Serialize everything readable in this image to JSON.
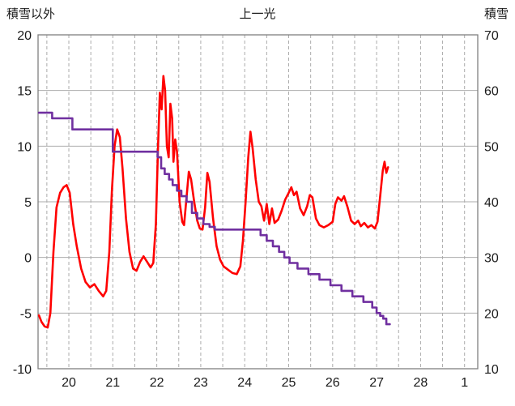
{
  "header": {
    "left_axis_title": "積雪以外",
    "chart_title": "上一光",
    "right_axis_title": "積雪"
  },
  "chart_data": {
    "type": "line",
    "title": "上一光",
    "legend": "none",
    "left_axis": {
      "title": "積雪以外",
      "range": [
        -10,
        20
      ],
      "ticks": [
        -10,
        -5,
        0,
        5,
        10,
        15,
        20
      ]
    },
    "right_axis": {
      "title": "積雪",
      "range": [
        10,
        70
      ],
      "ticks": [
        10,
        20,
        30,
        40,
        50,
        60,
        70
      ]
    },
    "x_axis": {
      "range": [
        19.3,
        29.3
      ],
      "tick_positions": [
        20,
        21,
        22,
        23,
        24,
        25,
        26,
        27,
        28,
        29
      ],
      "tick_labels": [
        "20",
        "21",
        "22",
        "23",
        "24",
        "25",
        "26",
        "27",
        "28",
        "1"
      ],
      "gridline_start": 19.5,
      "gridline_end": 29.0,
      "gridline_interval": 0.5
    },
    "style": {
      "grid_color": "#ABABAB",
      "grid_dash": "4 3",
      "border_color": "#7F7F7F",
      "tick_label_color": "#1a1a1a",
      "tick_font_size": 16
    },
    "series": [
      {
        "name": "積雪以外",
        "axis": "left",
        "color": "#FF0000",
        "width": 2.6,
        "interpolation": "linear",
        "points": [
          [
            19.32,
            -5.2
          ],
          [
            19.38,
            -5.8
          ],
          [
            19.45,
            -6.2
          ],
          [
            19.52,
            -6.3
          ],
          [
            19.58,
            -5.0
          ],
          [
            19.65,
            0.5
          ],
          [
            19.72,
            4.5
          ],
          [
            19.8,
            5.8
          ],
          [
            19.88,
            6.3
          ],
          [
            19.95,
            6.5
          ],
          [
            20.02,
            5.8
          ],
          [
            20.1,
            3.0
          ],
          [
            20.18,
            1.0
          ],
          [
            20.28,
            -1.0
          ],
          [
            20.38,
            -2.2
          ],
          [
            20.48,
            -2.7
          ],
          [
            20.58,
            -2.4
          ],
          [
            20.68,
            -3.0
          ],
          [
            20.78,
            -3.5
          ],
          [
            20.85,
            -3.0
          ],
          [
            20.92,
            0.5
          ],
          [
            20.98,
            6.0
          ],
          [
            21.04,
            10.0
          ],
          [
            21.1,
            11.5
          ],
          [
            21.16,
            10.8
          ],
          [
            21.22,
            8.0
          ],
          [
            21.3,
            3.5
          ],
          [
            21.38,
            0.5
          ],
          [
            21.46,
            -1.0
          ],
          [
            21.54,
            -1.2
          ],
          [
            21.62,
            -0.4
          ],
          [
            21.7,
            0.1
          ],
          [
            21.78,
            -0.4
          ],
          [
            21.86,
            -0.9
          ],
          [
            21.92,
            -0.5
          ],
          [
            21.98,
            3.0
          ],
          [
            22.03,
            10.0
          ],
          [
            22.07,
            14.8
          ],
          [
            22.11,
            13.3
          ],
          [
            22.15,
            16.3
          ],
          [
            22.19,
            15.0
          ],
          [
            22.23,
            10.0
          ],
          [
            22.27,
            9.0
          ],
          [
            22.31,
            13.8
          ],
          [
            22.35,
            12.5
          ],
          [
            22.38,
            8.6
          ],
          [
            22.42,
            10.6
          ],
          [
            22.46,
            9.5
          ],
          [
            22.52,
            5.0
          ],
          [
            22.58,
            3.2
          ],
          [
            22.62,
            2.9
          ],
          [
            22.68,
            5.5
          ],
          [
            22.73,
            7.7
          ],
          [
            22.78,
            7.0
          ],
          [
            22.85,
            5.0
          ],
          [
            22.92,
            3.3
          ],
          [
            22.98,
            2.6
          ],
          [
            23.04,
            2.5
          ],
          [
            23.1,
            4.5
          ],
          [
            23.15,
            7.6
          ],
          [
            23.2,
            6.8
          ],
          [
            23.28,
            3.5
          ],
          [
            23.36,
            1.0
          ],
          [
            23.44,
            -0.2
          ],
          [
            23.52,
            -0.8
          ],
          [
            23.62,
            -1.1
          ],
          [
            23.72,
            -1.4
          ],
          [
            23.82,
            -1.5
          ],
          [
            23.9,
            -0.8
          ],
          [
            23.96,
            1.5
          ],
          [
            24.02,
            5.0
          ],
          [
            24.08,
            9.0
          ],
          [
            24.13,
            11.3
          ],
          [
            24.18,
            9.8
          ],
          [
            24.25,
            7.0
          ],
          [
            24.32,
            5.0
          ],
          [
            24.38,
            4.6
          ],
          [
            24.44,
            3.3
          ],
          [
            24.5,
            4.8
          ],
          [
            24.56,
            3.0
          ],
          [
            24.62,
            4.4
          ],
          [
            24.68,
            3.1
          ],
          [
            24.76,
            3.4
          ],
          [
            24.84,
            4.2
          ],
          [
            24.92,
            5.2
          ],
          [
            25.0,
            5.8
          ],
          [
            25.06,
            6.3
          ],
          [
            25.12,
            5.6
          ],
          [
            25.18,
            5.9
          ],
          [
            25.26,
            4.4
          ],
          [
            25.34,
            3.8
          ],
          [
            25.42,
            4.6
          ],
          [
            25.48,
            5.6
          ],
          [
            25.54,
            5.4
          ],
          [
            25.62,
            3.5
          ],
          [
            25.7,
            2.9
          ],
          [
            25.8,
            2.7
          ],
          [
            25.9,
            2.9
          ],
          [
            26.0,
            3.2
          ],
          [
            26.06,
            4.8
          ],
          [
            26.12,
            5.4
          ],
          [
            26.2,
            5.1
          ],
          [
            26.26,
            5.5
          ],
          [
            26.34,
            4.5
          ],
          [
            26.42,
            3.3
          ],
          [
            26.5,
            3.0
          ],
          [
            26.58,
            3.3
          ],
          [
            26.64,
            2.8
          ],
          [
            26.72,
            3.1
          ],
          [
            26.8,
            2.7
          ],
          [
            26.88,
            2.9
          ],
          [
            26.96,
            2.6
          ],
          [
            27.02,
            3.2
          ],
          [
            27.08,
            5.5
          ],
          [
            27.14,
            7.8
          ],
          [
            27.18,
            8.6
          ],
          [
            27.22,
            7.6
          ],
          [
            27.26,
            8.1
          ]
        ]
      },
      {
        "name": "積雪",
        "axis": "right",
        "color": "#7030A0",
        "width": 2.6,
        "interpolation": "step",
        "points": [
          [
            19.32,
            56
          ],
          [
            19.62,
            55
          ],
          [
            20.08,
            53
          ],
          [
            21.0,
            49
          ],
          [
            22.02,
            48
          ],
          [
            22.1,
            46
          ],
          [
            22.18,
            45
          ],
          [
            22.28,
            44
          ],
          [
            22.36,
            43
          ],
          [
            22.46,
            42
          ],
          [
            22.56,
            41
          ],
          [
            22.68,
            40
          ],
          [
            22.8,
            38
          ],
          [
            22.92,
            37
          ],
          [
            23.06,
            36
          ],
          [
            23.2,
            35.5
          ],
          [
            23.32,
            35
          ],
          [
            24.36,
            34
          ],
          [
            24.5,
            33
          ],
          [
            24.64,
            32
          ],
          [
            24.78,
            31
          ],
          [
            24.9,
            30
          ],
          [
            25.02,
            29
          ],
          [
            25.2,
            28
          ],
          [
            25.45,
            27
          ],
          [
            25.7,
            26
          ],
          [
            25.95,
            25
          ],
          [
            26.2,
            24
          ],
          [
            26.45,
            23
          ],
          [
            26.7,
            22
          ],
          [
            26.9,
            21
          ],
          [
            27.0,
            20
          ],
          [
            27.08,
            19.5
          ],
          [
            27.15,
            19
          ],
          [
            27.22,
            18
          ],
          [
            27.3,
            18
          ]
        ]
      }
    ]
  }
}
